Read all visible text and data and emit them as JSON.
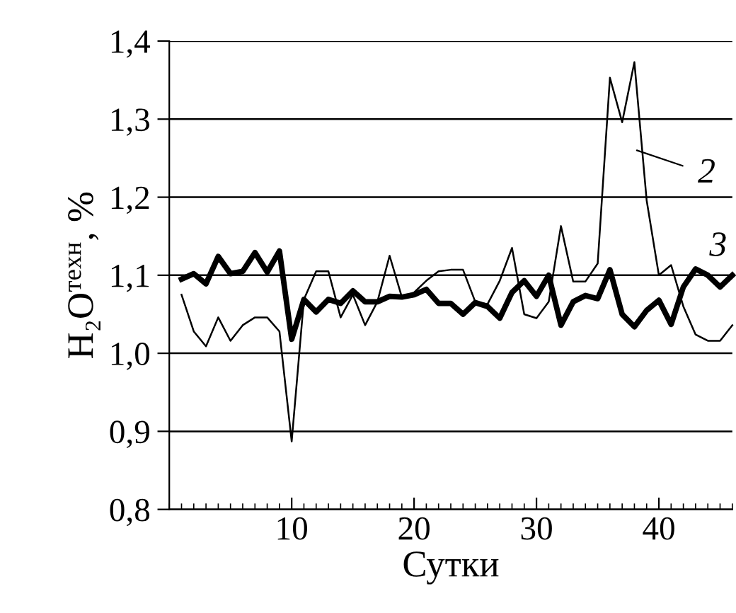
{
  "chart_data": {
    "type": "line",
    "xlabel": "Сутки",
    "ylabel": "H₂O$^{техн}$, %",
    "x": [
      1,
      2,
      3,
      4,
      5,
      6,
      7,
      8,
      9,
      10,
      11,
      12,
      13,
      14,
      15,
      16,
      17,
      18,
      19,
      20,
      21,
      22,
      23,
      24,
      25,
      26,
      27,
      28,
      29,
      30,
      31,
      32,
      33,
      34,
      35,
      36,
      37,
      38,
      39,
      40,
      41,
      42,
      43,
      44,
      45,
      46
    ],
    "series": [
      {
        "color": "#000000",
        "values": [
          1.075,
          1.028,
          1.009,
          1.046,
          1.016,
          1.036,
          1.046,
          1.046,
          1.028,
          0.887,
          1.069,
          1.105,
          1.105,
          1.046,
          1.075,
          1.036,
          1.066,
          1.125,
          1.072,
          1.078,
          1.093,
          1.105,
          1.107,
          1.107,
          1.066,
          1.063,
          1.093,
          1.135,
          1.05,
          1.045,
          1.066,
          1.163,
          1.092,
          1.092,
          1.115,
          1.353,
          1.296,
          1.373,
          1.196,
          1.1,
          1.113,
          1.06,
          1.024,
          1.016,
          1.016,
          1.036
        ]
      },
      {
        "color": "#000000",
        "values": [
          1.095,
          1.102,
          1.089,
          1.124,
          1.102,
          1.105,
          1.129,
          1.104,
          1.131,
          1.018,
          1.069,
          1.053,
          1.069,
          1.064,
          1.08,
          1.066,
          1.066,
          1.073,
          1.072,
          1.075,
          1.082,
          1.064,
          1.064,
          1.05,
          1.065,
          1.06,
          1.045,
          1.078,
          1.093,
          1.073,
          1.1,
          1.036,
          1.066,
          1.074,
          1.07,
          1.107,
          1.05,
          1.034,
          1.055,
          1.068,
          1.037,
          1.085,
          1.108,
          1.1,
          1.085,
          1.1
        ]
      }
    ],
    "annotations": [
      {
        "text": "2",
        "x": 38.2,
        "y": 1.26
      },
      {
        "text": "3",
        "x": 43,
        "y": 1.108
      }
    ],
    "xlim": [
      0,
      46
    ],
    "xticks": [
      10,
      20,
      30,
      40
    ],
    "ylim": [
      0.8,
      1.4
    ],
    "yticks": [
      {
        "value": 0.8,
        "label": "0,8"
      },
      {
        "value": 0.9,
        "label": "0,9"
      },
      {
        "value": 1.0,
        "label": "1,0"
      },
      {
        "value": 1.1,
        "label": "1,1"
      },
      {
        "value": 1.2,
        "label": "1,2"
      },
      {
        "value": 1.3,
        "label": "1,3"
      },
      {
        "value": 1.4,
        "label": "1,4"
      }
    ],
    "grid": "y",
    "legend": false
  }
}
